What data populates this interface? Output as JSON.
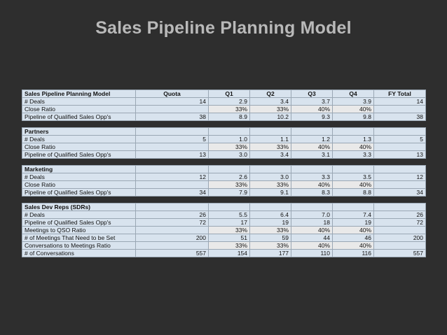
{
  "title": "Sales Pipeline Planning Model",
  "header": {
    "label": "Sales Pipeline Planning Model",
    "columns": [
      "Quota",
      "Q1",
      "Q2",
      "Q3",
      "Q4",
      "FY Total"
    ]
  },
  "sections": [
    {
      "name": "",
      "rows": [
        {
          "label": "# Deals",
          "cells": [
            "14",
            "2.9",
            "3.4",
            "3.7",
            "3.9",
            "14"
          ]
        },
        {
          "label": "Close Ratio",
          "cells": [
            "",
            "33%",
            "33%",
            "40%",
            "40%",
            ""
          ]
        },
        {
          "label": "Pipeline of Qualified Sales Opp's",
          "cells": [
            "38",
            "8.9",
            "10.2",
            "9.3",
            "9.8",
            "38"
          ]
        }
      ]
    },
    {
      "name": "Partners",
      "rows": [
        {
          "label": "# Deals",
          "cells": [
            "5",
            "1.0",
            "1.1",
            "1.2",
            "1.3",
            "5"
          ]
        },
        {
          "label": "Close Ratio",
          "cells": [
            "",
            "33%",
            "33%",
            "40%",
            "40%",
            ""
          ]
        },
        {
          "label": "Pipeline of Qualified Sales Opp's",
          "cells": [
            "13",
            "3.0",
            "3.4",
            "3.1",
            "3.3",
            "13"
          ]
        }
      ]
    },
    {
      "name": "Marketing",
      "rows": [
        {
          "label": "# Deals",
          "cells": [
            "12",
            "2.6",
            "3.0",
            "3.3",
            "3.5",
            "12"
          ]
        },
        {
          "label": "Close Ratio",
          "cells": [
            "",
            "33%",
            "33%",
            "40%",
            "40%",
            ""
          ]
        },
        {
          "label": "Pipeline of Qualified Sales Opp's",
          "cells": [
            "34",
            "7.9",
            "9.1",
            "8.3",
            "8.8",
            "34"
          ]
        }
      ]
    },
    {
      "name": "Sales Dev Reps (SDRs)",
      "rows": [
        {
          "label": "# Deals",
          "cells": [
            "26",
            "5.5",
            "6.4",
            "7.0",
            "7.4",
            "26"
          ]
        },
        {
          "label": "Pipeline of Qualified Sales Opp's",
          "cells": [
            "72",
            "17",
            "19",
            "18",
            "19",
            "72"
          ]
        },
        {
          "label": "Meetings to QSO Ratio",
          "cells": [
            "",
            "33%",
            "33%",
            "40%",
            "40%",
            ""
          ]
        },
        {
          "label": "# of Meetings That Need to be Set",
          "cells": [
            "200",
            "51",
            "59",
            "44",
            "46",
            "200"
          ]
        },
        {
          "label": "Conversations to Meetings Ratio",
          "cells": [
            "",
            "33%",
            "33%",
            "40%",
            "40%",
            ""
          ]
        },
        {
          "label": "# of Conversations",
          "cells": [
            "557",
            "154",
            "177",
            "110",
            "116",
            "557"
          ]
        }
      ]
    }
  ],
  "colors": {
    "background": "#2e2e2e",
    "title": "#b9b9b9",
    "cell": "#d8e3ee",
    "percent_cell": "#e9e9e9",
    "border": "#9aa7b4"
  }
}
